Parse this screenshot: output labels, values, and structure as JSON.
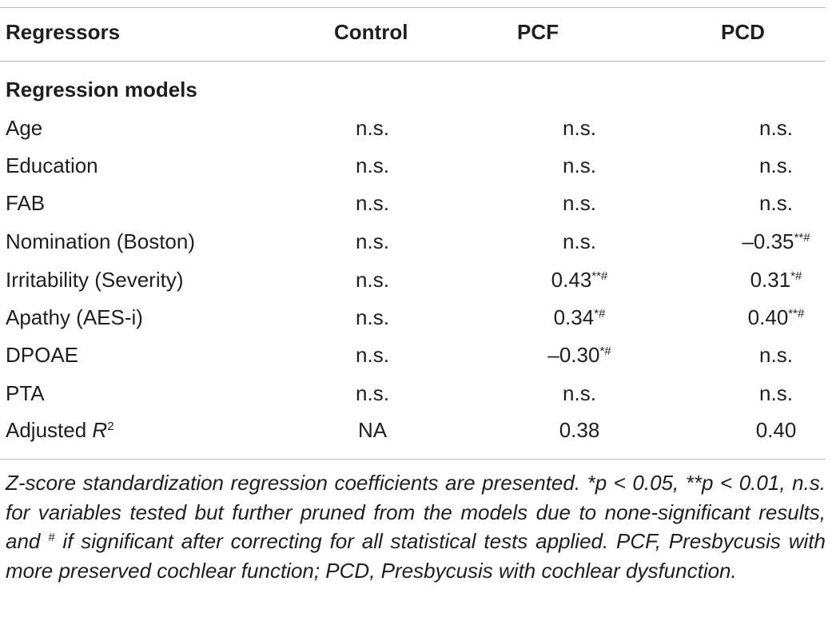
{
  "header": {
    "regressors": "Regressors",
    "control": "Control",
    "pcf": "PCF",
    "pcd": "PCD"
  },
  "section_title": "Regression models",
  "rows": [
    {
      "label": "Age",
      "control": "n.s.",
      "pcf": "n.s.",
      "pcf_sup": "",
      "pcd": "n.s.",
      "pcd_sup": ""
    },
    {
      "label": "Education",
      "control": "n.s.",
      "pcf": "n.s.",
      "pcf_sup": "",
      "pcd": "n.s.",
      "pcd_sup": ""
    },
    {
      "label": "FAB",
      "control": "n.s.",
      "pcf": "n.s.",
      "pcf_sup": "",
      "pcd": "n.s.",
      "pcd_sup": ""
    },
    {
      "label": "Nomination (Boston)",
      "control": "n.s.",
      "pcf": "n.s.",
      "pcf_sup": "",
      "pcd": "–0.35",
      "pcd_sup": "**#"
    },
    {
      "label": "Irritability (Severity)",
      "control": "n.s.",
      "pcf": "0.43",
      "pcf_sup": "**#",
      "pcd": "0.31",
      "pcd_sup": "*#"
    },
    {
      "label": "Apathy (AES-i)",
      "control": "n.s.",
      "pcf": "0.34",
      "pcf_sup": "*#",
      "pcd": "0.40",
      "pcd_sup": "**#"
    },
    {
      "label": "DPOAE",
      "control": "n.s.",
      "pcf": "–0.30",
      "pcf_sup": "*#",
      "pcd": "n.s.",
      "pcd_sup": ""
    },
    {
      "label": "PTA",
      "control": "n.s.",
      "pcf": "n.s.",
      "pcf_sup": "",
      "pcd": "n.s.",
      "pcd_sup": ""
    }
  ],
  "adjusted_row": {
    "label_prefix": "Adjusted ",
    "label_var": "R",
    "label_sup": "2",
    "control": "NA",
    "pcf": "0.38",
    "pcd": "0.40"
  },
  "footnote": {
    "part1": "Z-score standardization regression coefficients are presented. *p < 0.05, **p < 0.01, n.s. for variables tested but further pruned from the models due to none-significant results, and ",
    "hash": "#",
    "part2": " if significant after correcting for all statistical tests applied. PCF, Presbycusis with more preserved cochlear function; PCD, Presbycusis with cochlear dysfunction."
  }
}
